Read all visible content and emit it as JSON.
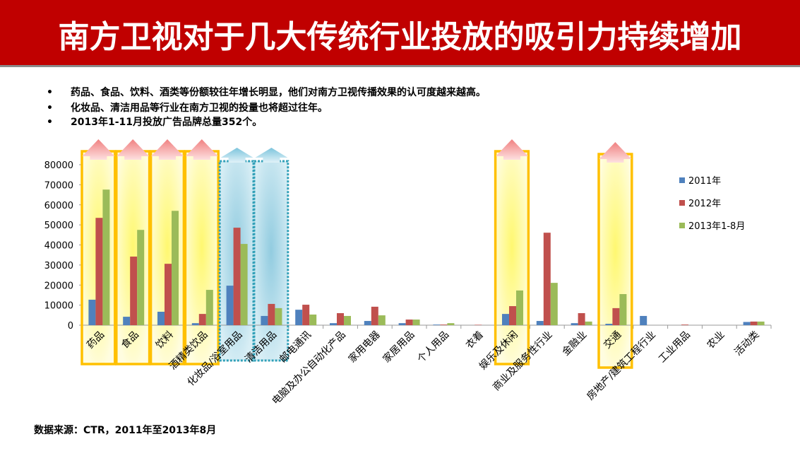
{
  "title": "南方卫视对于几大传统行业投放的吸引力持续增加",
  "bullets": [
    "药品、食品、饮料、酒类等份额较往年增长明显，他们对南方卫视传播效果的认可度越来越高。",
    "化妆品、清洁用品等行业在南方卫视的投量也将超过往年。",
    "2013年1-11月投放广告品牌总量352个。"
  ],
  "bullet_glyph": "•",
  "source": "数据来源：CTR，2011年至2013年8月",
  "chart_data": {
    "type": "bar",
    "title": "",
    "xlabel": "",
    "ylabel": "",
    "ylim": [
      0,
      80000
    ],
    "yticks": [
      "0",
      "10000",
      "20000",
      "30000",
      "40000",
      "50000",
      "60000",
      "70000",
      "80000"
    ],
    "categories": [
      "药品",
      "食品",
      "饮料",
      "酒精类饮品",
      "化妆品/浴室用品",
      "清洁用品",
      "邮电通讯",
      "电脑及办公自动化产品",
      "家用电器",
      "家居用品",
      "个人用品",
      "衣着",
      "娱乐及休闲",
      "商业及服务性行业",
      "金融业",
      "交通",
      "房地产/建筑工程行业",
      "工业用品",
      "农业",
      "活动类"
    ],
    "series": [
      {
        "name": "2011年",
        "color": "#4f81bd",
        "values": [
          12700,
          4200,
          6700,
          1000,
          19700,
          4600,
          7700,
          1000,
          2100,
          1000,
          300,
          0,
          5600,
          2100,
          1000,
          700,
          4600,
          0,
          0,
          1600
        ]
      },
      {
        "name": "2012年",
        "color": "#c0504d",
        "values": [
          53500,
          34200,
          30600,
          5600,
          48600,
          10600,
          10200,
          6000,
          9200,
          2800,
          300,
          200,
          9500,
          46100,
          6000,
          8500,
          0,
          300,
          0,
          1800
        ]
      },
      {
        "name": "2013年1-8月",
        "color": "#9bbb59",
        "values": [
          67600,
          47500,
          57000,
          17600,
          40500,
          8500,
          5300,
          4600,
          4900,
          2800,
          1000,
          0,
          17300,
          21100,
          1800,
          15500,
          0,
          0,
          0,
          1800
        ]
      }
    ],
    "legend": "right",
    "highlight_up_yellow": [
      0,
      1,
      2,
      3,
      12,
      15
    ],
    "highlight_up_blue": [
      4,
      5
    ]
  }
}
